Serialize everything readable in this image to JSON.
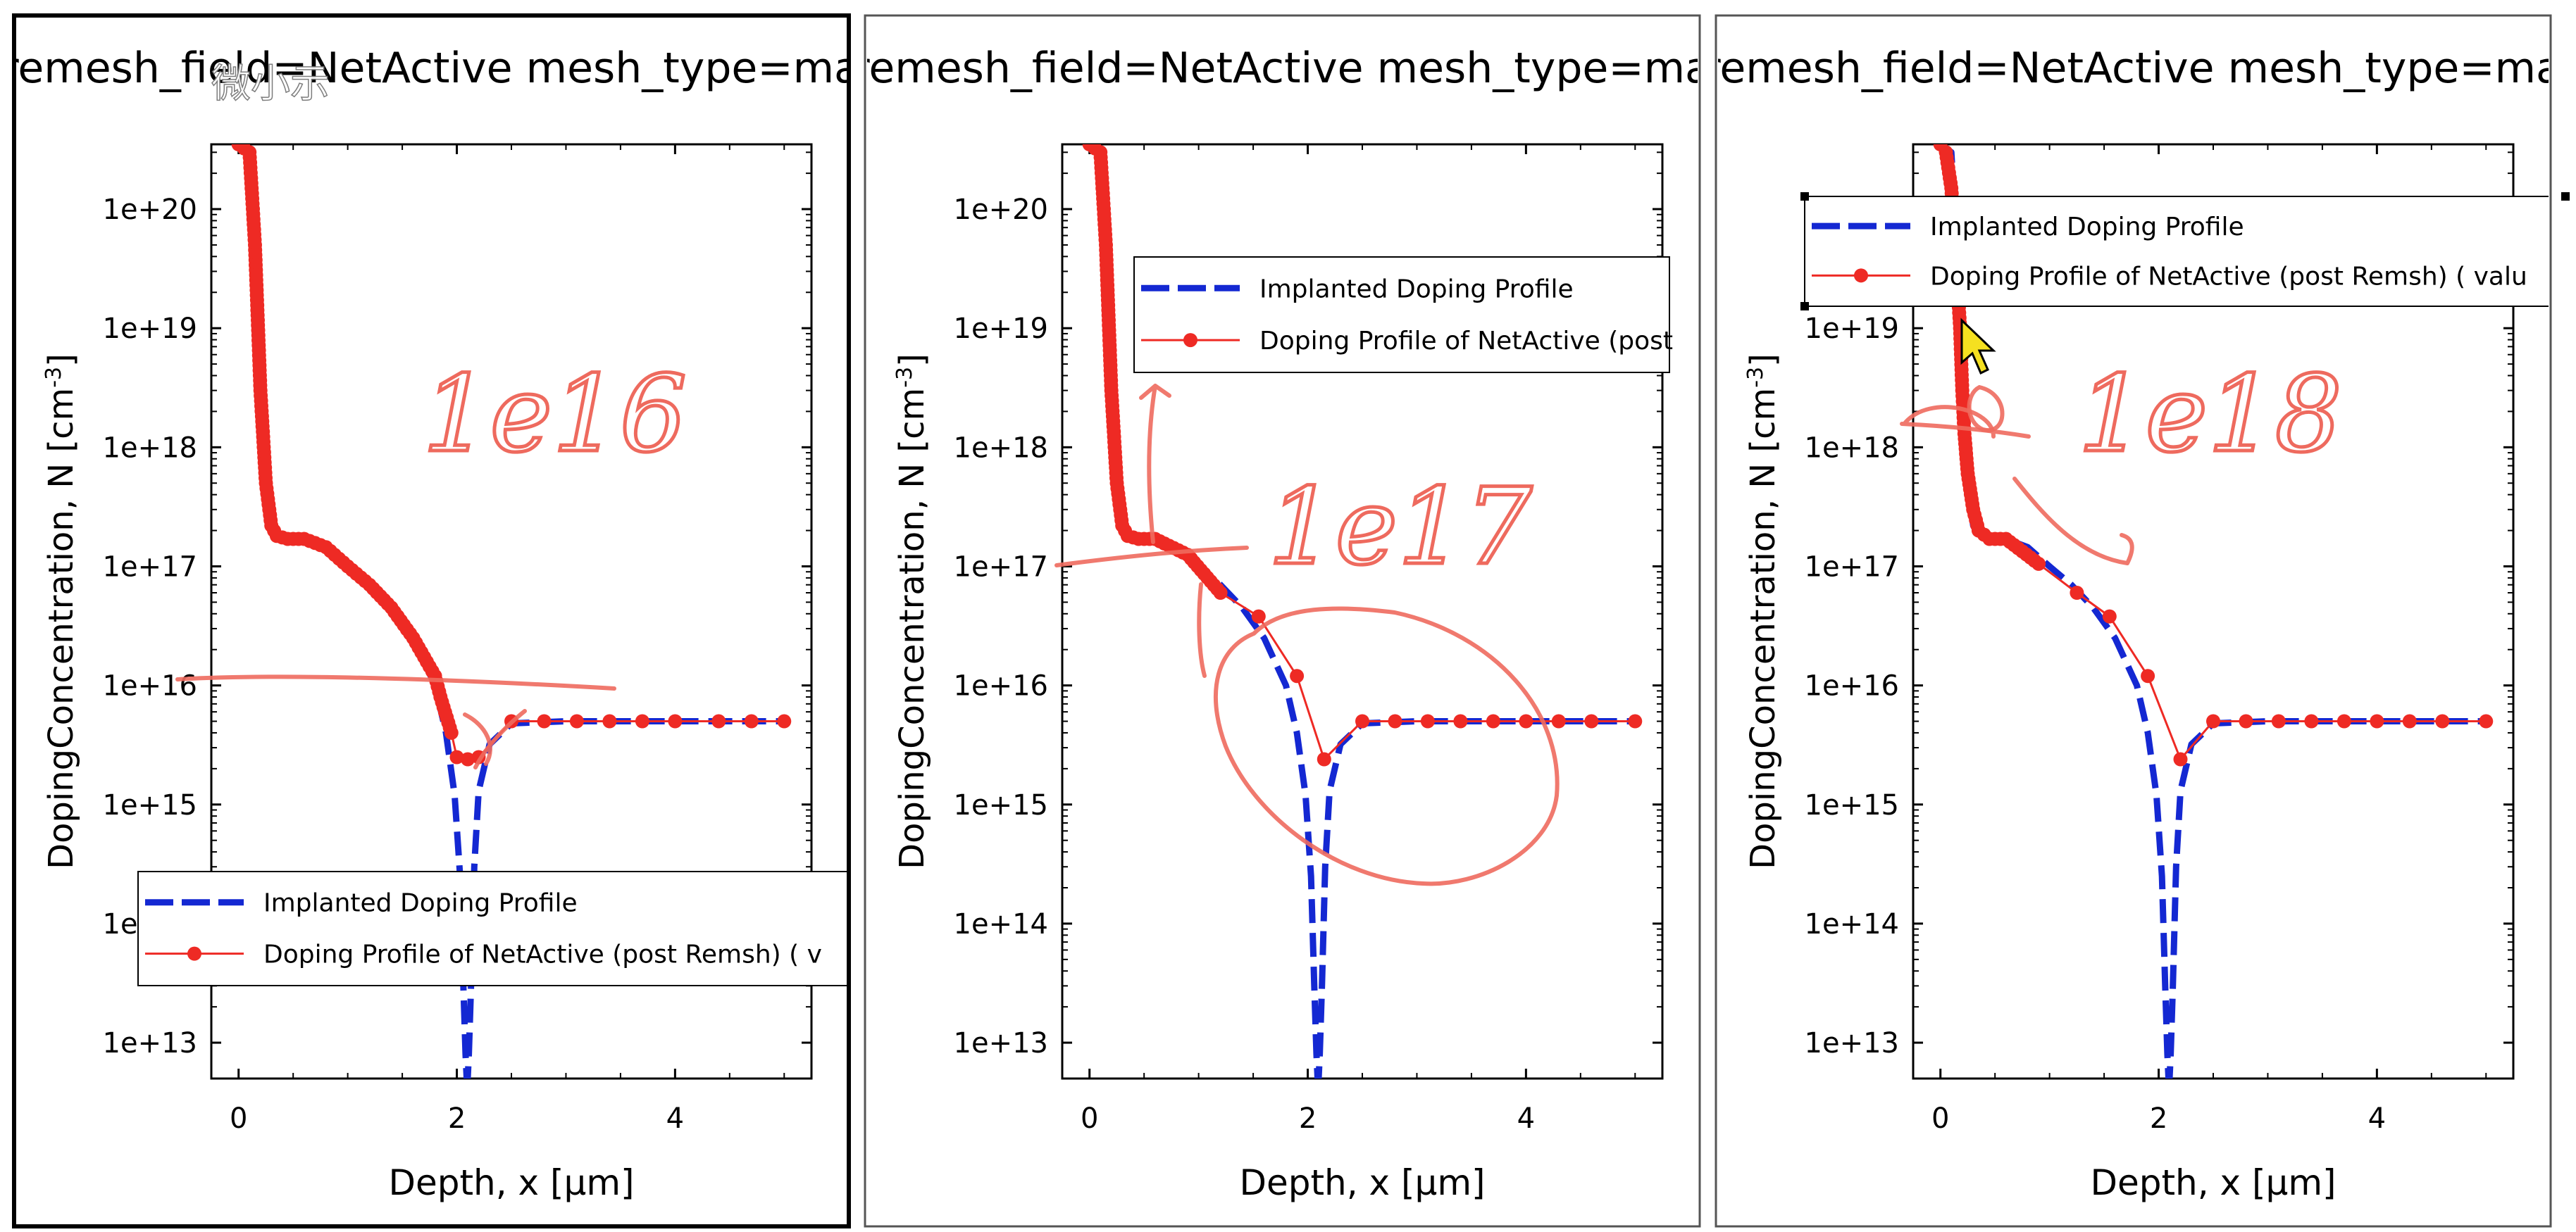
{
  "window": {
    "app_label": "微小示"
  },
  "colors": {
    "implanted": "#1428d2",
    "netactive": "#ee2a24",
    "annotation": "#ee6a5e",
    "frame": "#000000",
    "background": "#ffffff"
  },
  "panels": [
    {
      "title": "remesh_field=NetActive mesh_type=max",
      "legend": {
        "position": "bottom-left",
        "implanted_label": "Implanted Doping Profile",
        "netactive_label": "Doping Profile of NetActive (post Remsh) ( v"
      },
      "annotations": [
        "1e16"
      ],
      "selected": true
    },
    {
      "title": "remesh_field=NetActive mesh_type=max",
      "legend": {
        "position": "upper-right",
        "implanted_label": "Implanted Doping Profile",
        "netactive_label": "Doping Profile of NetActive (post"
      },
      "annotations": [
        "1e17"
      ],
      "selected": false
    },
    {
      "title": "remesh_field=NetActive mesh_type=max",
      "legend": {
        "position": "top",
        "implanted_label": "Implanted Doping Profile",
        "netactive_label": "Doping Profile of NetActive (post Remsh) ( valu"
      },
      "annotations": [
        "1e18"
      ],
      "selected": false
    }
  ],
  "chart_data": [
    {
      "type": "line",
      "title": "remesh_field=NetActive mesh_type=max",
      "xlabel": "Depth, x [μm]",
      "ylabel": "DopingConcentration, N [cm",
      "ylabel_sup": "-3",
      "ylabel_close": "]",
      "xticks": [
        "0",
        "2",
        "4"
      ],
      "yticks": [
        "1e+13",
        "1e+14",
        "1e+15",
        "1e+16",
        "1e+17",
        "1e+18",
        "1e+19",
        "1e+20"
      ],
      "xlim": [
        -0.25,
        5.25
      ],
      "ylim": [
        5000000000000.0,
        3.5e+20
      ],
      "yscale": "log",
      "grid": false,
      "series": [
        {
          "name": "Implanted Doping Profile",
          "style": "dashed",
          "x": [
            0,
            0.1,
            0.15,
            0.2,
            0.25,
            0.3,
            0.35,
            0.45,
            0.6,
            0.8,
            1.0,
            1.2,
            1.4,
            1.6,
            1.8,
            1.9,
            1.98,
            2.03,
            2.06,
            2.08,
            2.09,
            2.1,
            2.11,
            2.13,
            2.16,
            2.2,
            2.3,
            2.5,
            3.0,
            4.0,
            5.0
          ],
          "y": [
            3.5e+20,
            3e+20,
            5e+19,
            3e+18,
            5e+17,
            2.2e+17,
            1.8e+17,
            1.7e+17,
            1.7e+17,
            1.45e+17,
            1e+17,
            7e+16,
            4.5e+16,
            2.5e+16,
            1e+16,
            4000000000000000.0,
            1200000000000000.0,
            250000000000000.0,
            30000000000000.0,
            8000000000000.0,
            5000000000000.0,
            5000000000000.0,
            8000000000000.0,
            30000000000000.0,
            300000000000000.0,
            1300000000000000.0,
            3200000000000000.0,
            4800000000000000.0,
            5000000000000000.0,
            5000000000000000.0,
            5000000000000000.0
          ]
        },
        {
          "name": "Doping Profile of NetActive (post Remsh)",
          "style": "solid-dot",
          "x": [
            0,
            0.1,
            0.15,
            0.2,
            0.25,
            0.3,
            0.35,
            0.45,
            0.6,
            0.8,
            1.0,
            1.2,
            1.4,
            1.6,
            1.8,
            1.85,
            1.95,
            2.0,
            2.1,
            2.2,
            2.5,
            2.8,
            3.1,
            3.4,
            3.7,
            4.0,
            4.4,
            4.7,
            5.0
          ],
          "y": [
            3.5e+20,
            3e+20,
            5e+19,
            3e+18,
            5e+17,
            2.2e+17,
            1.8e+17,
            1.7e+17,
            1.7e+17,
            1.45e+17,
            1e+17,
            7e+16,
            4.5e+16,
            2.5e+16,
            1.2e+16,
            8000000000000000.0,
            4000000000000000.0,
            2500000000000000.0,
            2400000000000000.0,
            2500000000000000.0,
            5000000000000000.0,
            5000000000000000.0,
            5000000000000000.0,
            5000000000000000.0,
            5000000000000000.0,
            5000000000000000.0,
            5000000000000000.0,
            5000000000000000.0,
            5000000000000000.0
          ]
        }
      ]
    },
    {
      "type": "line",
      "title": "remesh_field=NetActive mesh_type=max",
      "xlabel": "Depth, x [μm]",
      "ylabel": "DopingConcentration, N [cm",
      "ylabel_sup": "-3",
      "ylabel_close": "]",
      "xticks": [
        "0",
        "2",
        "4"
      ],
      "yticks": [
        "1e+13",
        "1e+14",
        "1e+15",
        "1e+16",
        "1e+17",
        "1e+18",
        "1e+19",
        "1e+20"
      ],
      "xlim": [
        -0.25,
        5.25
      ],
      "ylim": [
        5000000000000.0,
        3.5e+20
      ],
      "yscale": "log",
      "grid": false,
      "series": [
        {
          "name": "Implanted Doping Profile",
          "style": "dashed",
          "x": [
            0,
            0.1,
            0.15,
            0.2,
            0.25,
            0.3,
            0.35,
            0.45,
            0.6,
            0.8,
            1.0,
            1.2,
            1.4,
            1.6,
            1.8,
            1.9,
            1.98,
            2.03,
            2.06,
            2.08,
            2.09,
            2.1,
            2.11,
            2.13,
            2.16,
            2.2,
            2.3,
            2.5,
            3.0,
            4.0,
            5.0
          ],
          "y": [
            3.5e+20,
            3e+20,
            5e+19,
            3e+18,
            5e+17,
            2.2e+17,
            1.8e+17,
            1.7e+17,
            1.7e+17,
            1.45e+17,
            1e+17,
            7e+16,
            4.5e+16,
            2.5e+16,
            1e+16,
            4000000000000000.0,
            1200000000000000.0,
            250000000000000.0,
            30000000000000.0,
            8000000000000.0,
            5000000000000.0,
            5000000000000.0,
            8000000000000.0,
            30000000000000.0,
            300000000000000.0,
            1300000000000000.0,
            3200000000000000.0,
            4800000000000000.0,
            5000000000000000.0,
            5000000000000000.0,
            5000000000000000.0
          ]
        },
        {
          "name": "Doping Profile of NetActive (post Remsh)",
          "style": "solid-dot",
          "x": [
            0,
            0.1,
            0.15,
            0.2,
            0.25,
            0.3,
            0.35,
            0.45,
            0.6,
            0.9,
            1.2,
            1.55,
            1.9,
            2.15,
            2.5,
            2.8,
            3.1,
            3.4,
            3.7,
            4.0,
            4.3,
            4.6,
            5.0
          ],
          "y": [
            3.5e+20,
            3e+20,
            5e+19,
            3e+18,
            5e+17,
            2.2e+17,
            1.8e+17,
            1.7e+17,
            1.7e+17,
            1.25e+17,
            6e+16,
            3.8e+16,
            1.2e+16,
            2400000000000000.0,
            5000000000000000.0,
            5000000000000000.0,
            5000000000000000.0,
            5000000000000000.0,
            5000000000000000.0,
            5000000000000000.0,
            5000000000000000.0,
            5000000000000000.0,
            5000000000000000.0
          ]
        }
      ]
    },
    {
      "type": "line",
      "title": "remesh_field=NetActive mesh_type=max",
      "xlabel": "Depth, x [μm]",
      "ylabel": "DopingConcentration, N [cm",
      "ylabel_sup": "-3",
      "ylabel_close": "]",
      "xticks": [
        "0",
        "2",
        "4"
      ],
      "yticks": [
        "1e+13",
        "1e+14",
        "1e+15",
        "1e+16",
        "1e+17",
        "1e+18",
        "1e+19",
        "1e+20"
      ],
      "xlim": [
        -0.25,
        5.25
      ],
      "ylim": [
        5000000000000.0,
        3.5e+20
      ],
      "yscale": "log",
      "grid": false,
      "series": [
        {
          "name": "Implanted Doping Profile",
          "style": "dashed",
          "x": [
            0,
            0.1,
            0.15,
            0.2,
            0.25,
            0.3,
            0.35,
            0.45,
            0.6,
            0.8,
            1.0,
            1.2,
            1.4,
            1.6,
            1.8,
            1.9,
            1.98,
            2.03,
            2.06,
            2.08,
            2.09,
            2.1,
            2.11,
            2.13,
            2.16,
            2.2,
            2.3,
            2.5,
            3.0,
            4.0,
            5.0
          ],
          "y": [
            3.5e+20,
            3e+20,
            5e+19,
            3e+18,
            5e+17,
            2.2e+17,
            1.8e+17,
            1.7e+17,
            1.7e+17,
            1.45e+17,
            1e+17,
            7e+16,
            4.5e+16,
            2.5e+16,
            1e+16,
            4000000000000000.0,
            1200000000000000.0,
            250000000000000.0,
            30000000000000.0,
            8000000000000.0,
            5000000000000.0,
            5000000000000.0,
            8000000000000.0,
            30000000000000.0,
            300000000000000.0,
            1300000000000000.0,
            3200000000000000.0,
            4800000000000000.0,
            5000000000000000.0,
            5000000000000000.0,
            5000000000000000.0
          ]
        },
        {
          "name": "Doping Profile of NetActive (post Remsh)",
          "style": "solid-dot",
          "x": [
            0,
            0.05,
            0.1,
            0.15,
            0.18,
            0.2,
            0.22,
            0.25,
            0.3,
            0.35,
            0.45,
            0.6,
            0.9,
            1.25,
            1.55,
            1.9,
            2.2,
            2.5,
            2.8,
            3.1,
            3.4,
            3.7,
            4.0,
            4.3,
            4.6,
            5.0
          ],
          "y": [
            3.5e+20,
            3e+20,
            1.5e+20,
            3e+19,
            1e+19,
            3e+18,
            1.3e+18,
            6e+17,
            3e+17,
            2e+17,
            1.7e+17,
            1.7e+17,
            1.05e+17,
            6e+16,
            3.8e+16,
            1.2e+16,
            2400000000000000.0,
            5000000000000000.0,
            5000000000000000.0,
            5000000000000000.0,
            5000000000000000.0,
            5000000000000000.0,
            5000000000000000.0,
            5000000000000000.0,
            5000000000000000.0,
            5000000000000000.0
          ]
        }
      ]
    }
  ]
}
